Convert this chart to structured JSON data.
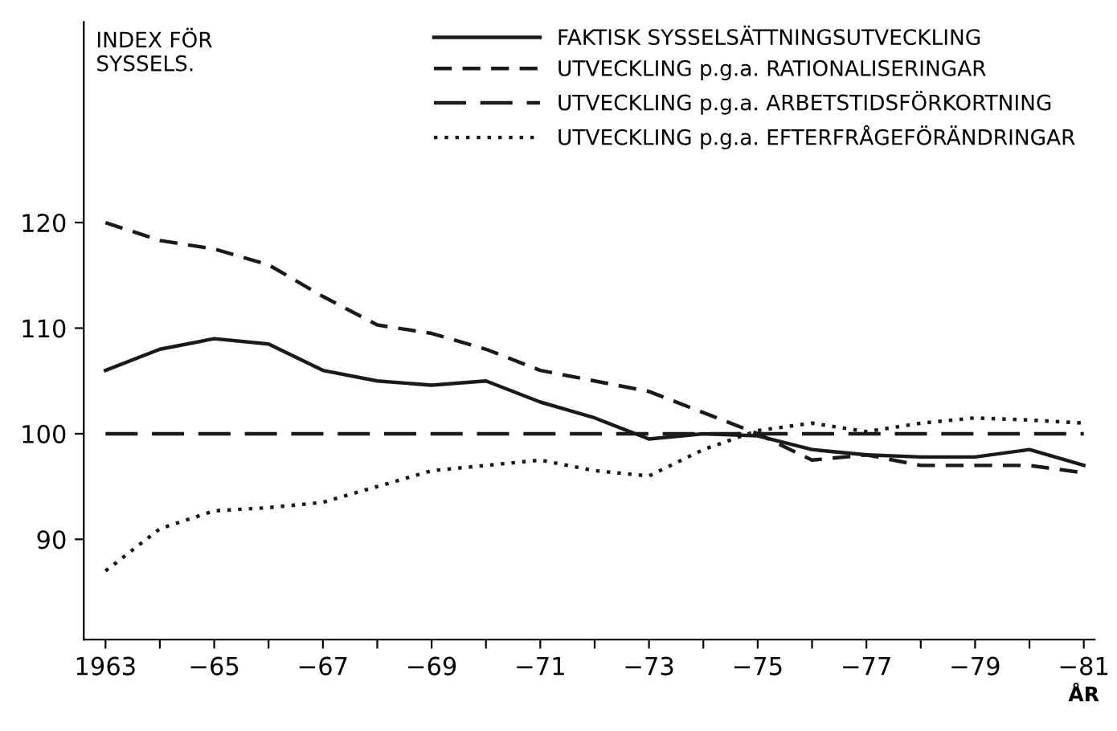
{
  "chart_data": {
    "type": "line",
    "ylabel": "INDEX FÖR\nSYSSELS.",
    "xlabel": "ÅR",
    "categories": [
      "1963",
      null,
      "−65",
      null,
      "−67",
      null,
      "−69",
      null,
      "−71",
      null,
      "−73",
      null,
      "−75",
      null,
      "−77",
      null,
      "−79",
      null,
      "−81"
    ],
    "series": [
      {
        "name": "FAKTISK SYSSELSÄTTNINGSUTVECKLING",
        "color": "#1a1a1a",
        "line_style": "solid",
        "values": [
          106,
          108,
          109,
          108.5,
          106,
          105,
          104.6,
          105,
          103,
          101.5,
          99.5,
          100,
          99.8,
          98.5,
          98,
          97.8,
          97.8,
          98.5,
          97
        ]
      },
      {
        "name": "UTVECKLING p.g.a. RATIONALISERINGAR",
        "color": "#1a1a1a",
        "line_style": "dashed",
        "values": [
          120,
          118.3,
          117.5,
          116,
          113,
          110.3,
          109.5,
          108,
          106,
          105,
          104,
          102,
          100,
          97.5,
          98,
          97,
          97,
          97,
          96.3
        ]
      },
      {
        "name": "UTVECKLING p.g.a. ARBETSTIDSFÖRKORTNING",
        "color": "#1a1a1a",
        "line_style": "dashed",
        "values": [
          100,
          100,
          100,
          100,
          100,
          100,
          100,
          100,
          100,
          100,
          100,
          100,
          100,
          100,
          100,
          100,
          100,
          100,
          100
        ]
      },
      {
        "name": "UTVECKLING p.g.a. EFTERFRÅGEFÖRÄNDRINGAR",
        "color": "#1a1a1a",
        "line_style": "dotted",
        "values": [
          87,
          91,
          92.7,
          93,
          93.5,
          95,
          96.5,
          97,
          97.5,
          96.5,
          96,
          98.5,
          100.3,
          101,
          100.2,
          101,
          101.5,
          101.3,
          101
        ]
      }
    ],
    "ylim": [
      80.5,
      139
    ],
    "yticks": [
      90,
      100,
      110,
      120
    ],
    "grid": false,
    "legend": "top right"
  }
}
